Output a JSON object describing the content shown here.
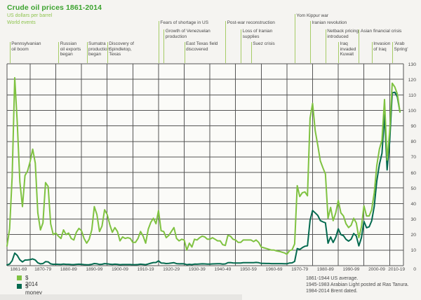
{
  "header": {
    "title": "Crude oil prices 1861-2014",
    "subtitle": "US dollars per barrel",
    "world_events_label": "World events"
  },
  "legend": [
    {
      "label": "$ 2014",
      "color": "#7fc241"
    },
    {
      "label": "$ money of the day",
      "color": "#046a4f"
    }
  ],
  "notes": [
    "1861-1944 US average.",
    "1945-1983 Arabian Light posted at Ras Tanura.",
    "1984-2014 Brent dated."
  ],
  "colors": {
    "title_green": "#3ca32f",
    "subtitle_green": "#8fc450",
    "event_tick": "#a6cc67",
    "grid": "#555555",
    "plot_bg": "#fbfbf8",
    "text": "#4a4a4a"
  },
  "chart_data": {
    "type": "line",
    "title": "Crude oil prices 1861-2014",
    "ylabel": "US dollars per barrel",
    "x_start_year": 1861,
    "x_end_year": 2014,
    "ylim": [
      0,
      130
    ],
    "y_tick_step": 10,
    "grid": true,
    "legend_position": "bottom-left",
    "x_tick_labels": [
      "1861-69",
      "1870-79",
      "1880-89",
      "1890-99",
      "1900-09",
      "1910-19",
      "1920-29",
      "1930-39",
      "1940-49",
      "1950-59",
      "1960-69",
      "1970-79",
      "1980-89",
      "1990-99",
      "2000-09",
      "2010-19"
    ],
    "series": [
      {
        "name": "$ money of the day",
        "color": "#046a4f",
        "values": [
          0.49,
          1.05,
          3.15,
          8.06,
          6.59,
          3.74,
          2.41,
          3.63,
          3.64,
          3.86,
          4.34,
          3.64,
          1.83,
          1.17,
          1.35,
          2.56,
          2.42,
          1.19,
          0.86,
          0.95,
          0.86,
          0.78,
          1.0,
          0.84,
          0.88,
          0.71,
          0.67,
          0.88,
          0.94,
          0.87,
          0.67,
          0.56,
          0.64,
          0.84,
          1.36,
          1.18,
          0.79,
          0.91,
          1.29,
          1.19,
          0.96,
          0.8,
          0.94,
          0.86,
          0.62,
          0.73,
          0.72,
          0.72,
          0.7,
          0.61,
          0.61,
          0.74,
          0.95,
          0.81,
          0.64,
          1.1,
          1.56,
          1.98,
          2.01,
          3.07,
          1.73,
          1.61,
          1.34,
          1.43,
          1.68,
          1.88,
          1.3,
          1.17,
          1.27,
          1.19,
          0.65,
          0.87,
          0.67,
          1.0,
          0.97,
          1.09,
          1.18,
          1.13,
          1.02,
          1.02,
          1.14,
          1.19,
          1.2,
          1.21,
          1.05,
          1.12,
          1.9,
          1.99,
          1.78,
          1.71,
          1.71,
          1.71,
          1.93,
          1.93,
          1.93,
          1.93,
          1.9,
          2.08,
          1.9,
          1.5,
          1.45,
          1.42,
          1.4,
          1.33,
          1.33,
          1.33,
          1.33,
          1.3,
          1.28,
          1.21,
          1.7,
          1.82,
          2.7,
          11.0,
          10.43,
          11.6,
          12.5,
          12.79,
          29.19,
          35.52,
          34.0,
          32.38,
          29.04,
          28.2,
          27.58,
          14.43,
          18.44,
          14.92,
          18.23,
          23.73,
          20.0,
          19.32,
          16.97,
          15.82,
          17.02,
          20.67,
          19.09,
          12.72,
          17.97,
          28.5,
          24.44,
          25.02,
          28.83,
          38.27,
          54.52,
          65.14,
          72.39,
          97.26,
          61.67,
          79.5,
          111.26,
          111.67,
          108.66,
          98.95
        ]
      },
      {
        "name": "$ 2014",
        "color": "#7fc241",
        "values": [
          12.6,
          23.7,
          57.0,
          121.0,
          92.0,
          54.0,
          38.0,
          58.0,
          61.0,
          67.0,
          75.0,
          66.0,
          34.0,
          23.0,
          27.5,
          53.5,
          51.0,
          27.0,
          20.0,
          21.0,
          19.0,
          17.5,
          23.0,
          20.0,
          21.0,
          17.5,
          16.5,
          21.5,
          24.0,
          22.5,
          17.5,
          14.5,
          17.0,
          23.0,
          38.0,
          33.0,
          22.0,
          25.5,
          36.0,
          33.0,
          26.5,
          21.5,
          24.5,
          22.0,
          16.0,
          18.5,
          17.5,
          18.0,
          17.5,
          15.0,
          15.0,
          17.5,
          22.0,
          19.0,
          14.5,
          23.5,
          28.0,
          30.5,
          27.0,
          35.5,
          22.5,
          22.0,
          18.0,
          19.5,
          22.0,
          24.5,
          17.5,
          16.0,
          17.0,
          16.5,
          10.0,
          14.5,
          12.0,
          17.0,
          16.5,
          18.0,
          19.0,
          18.5,
          17.0,
          17.0,
          18.0,
          17.0,
          16.0,
          16.0,
          13.5,
          13.0,
          19.5,
          19.0,
          17.0,
          16.5,
          15.0,
          15.0,
          16.5,
          16.5,
          16.5,
          16.5,
          15.5,
          16.5,
          15.0,
          12.0,
          11.5,
          11.0,
          10.5,
          10.0,
          10.0,
          9.5,
          9.2,
          8.7,
          8.2,
          7.3,
          9.7,
          10.2,
          14.0,
          51.5,
          44.5,
          47.0,
          47.5,
          45.0,
          95.0,
          104.5,
          87.0,
          77.5,
          67.5,
          63.0,
          59.0,
          30.5,
          37.5,
          29.0,
          34.0,
          42.0,
          34.0,
          32.0,
          27.0,
          24.5,
          26.0,
          30.5,
          27.5,
          18.0,
          25.0,
          38.5,
          32.0,
          32.0,
          36.0,
          47.0,
          64.5,
          75.0,
          81.0,
          107.0,
          68.0,
          86.0,
          117.5,
          115.0,
          110.5,
          99.0
        ]
      }
    ],
    "events": [
      {
        "label": "Pennsylvanian\noil boom",
        "year": 1862,
        "row": 4
      },
      {
        "label": "Russian\noil exports\nbegan",
        "year": 1881,
        "row": 4
      },
      {
        "label": "Sumatra\nproduction\nbegan",
        "year": 1892,
        "row": 4
      },
      {
        "label": "Discovery of\nSpindletop,\nTexas",
        "year": 1900,
        "row": 4
      },
      {
        "label": "Fears of shortage in US",
        "year": 1920,
        "row": 2
      },
      {
        "label": "Growth of Venezuelan\nproduction",
        "year": 1922,
        "row": 3
      },
      {
        "label": "East Texas field\ndiscovered",
        "year": 1930,
        "row": 4
      },
      {
        "label": "Post-war reconstruction",
        "year": 1946,
        "row": 2
      },
      {
        "label": "Loss of Iranian\nsupplies",
        "year": 1952,
        "row": 3
      },
      {
        "label": "Suez crisis",
        "year": 1956,
        "row": 4
      },
      {
        "label": "Yom Kippur war",
        "year": 1973,
        "row": 1
      },
      {
        "label": "Iranian revolution",
        "year": 1979,
        "row": 2
      },
      {
        "label": "Netback pricing\nintroduced",
        "year": 1985,
        "row": 3
      },
      {
        "label": "Iraq\ninvaded\nKuwait",
        "year": 1990,
        "row": 4
      },
      {
        "label": "Asian financial crisis",
        "year": 1998,
        "row": 3
      },
      {
        "label": "Invasion\nof Iraq",
        "year": 2003,
        "row": 4
      },
      {
        "label": "'Arab\nSpring'",
        "year": 2011,
        "row": 4
      }
    ]
  }
}
